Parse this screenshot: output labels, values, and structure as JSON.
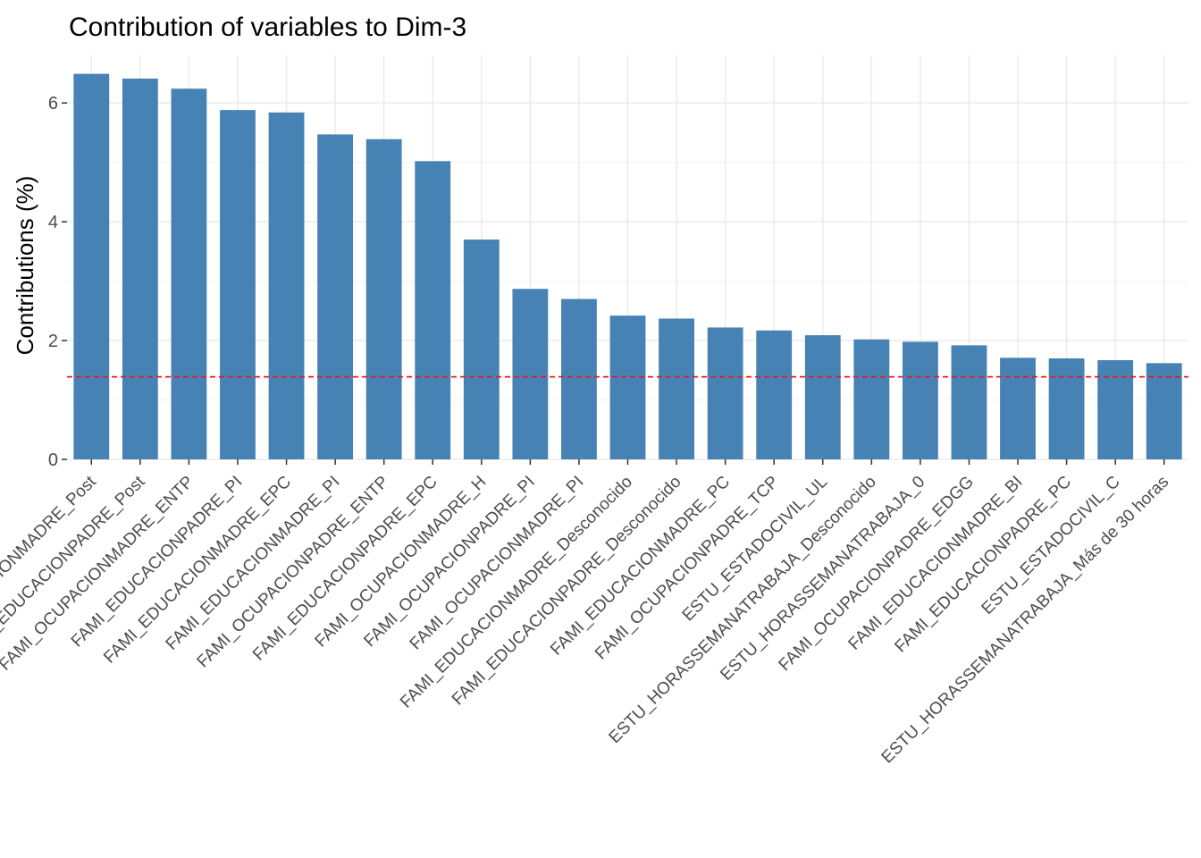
{
  "chart_data": {
    "type": "bar",
    "title": "Contribution of variables to Dim-3",
    "xlabel": "",
    "ylabel": "Contributions (%)",
    "ylim": [
      0,
      6.8
    ],
    "yticks": [
      0,
      2,
      4,
      6
    ],
    "ytick_labels": [
      "0",
      "2",
      "4",
      "6"
    ],
    "grid": true,
    "legend": "none",
    "bar_color": "#4682b4",
    "reference_line": {
      "value": 1.39,
      "color": "#e41a1c",
      "style": "dashed"
    },
    "categories": [
      "FAMI_EDUCACIONMADRE_Post",
      "FAMI_EDUCACIONPADRE_Post",
      "FAMI_OCUPACIONMADRE_ENTP",
      "FAMI_EDUCACIONPADRE_PI",
      "FAMI_EDUCACIONMADRE_EPC",
      "FAMI_EDUCACIONMADRE_PI",
      "FAMI_OCUPACIONPADRE_ENTP",
      "FAMI_EDUCACIONPADRE_EPC",
      "FAMI_OCUPACIONMADRE_H",
      "FAMI_OCUPACIONPADRE_PI",
      "FAMI_OCUPACIONMADRE_PI",
      "FAMI_EDUCACIONMADRE_Desconocido",
      "FAMI_EDUCACIONPADRE_Desconocido",
      "FAMI_EDUCACIONMADRE_PC",
      "FAMI_OCUPACIONPADRE_TCP",
      "ESTU_ESTADOCIVIL_UL",
      "ESTU_HORASSEMANATRABAJA_Desconocido",
      "ESTU_HORASSEMANATRABAJA_0",
      "FAMI_OCUPACIONPADRE_EDGG",
      "FAMI_EDUCACIONMADRE_BI",
      "FAMI_EDUCACIONPADRE_PC",
      "ESTU_ESTADOCIVIL_C",
      "ESTU_HORASSEMANATRABAJA_Más de 30 horas"
    ],
    "values": [
      6.49,
      6.41,
      6.24,
      5.88,
      5.84,
      5.47,
      5.39,
      5.02,
      3.7,
      2.87,
      2.7,
      2.42,
      2.37,
      2.22,
      2.17,
      2.09,
      2.02,
      1.98,
      1.92,
      1.71,
      1.7,
      1.67,
      1.62
    ]
  }
}
